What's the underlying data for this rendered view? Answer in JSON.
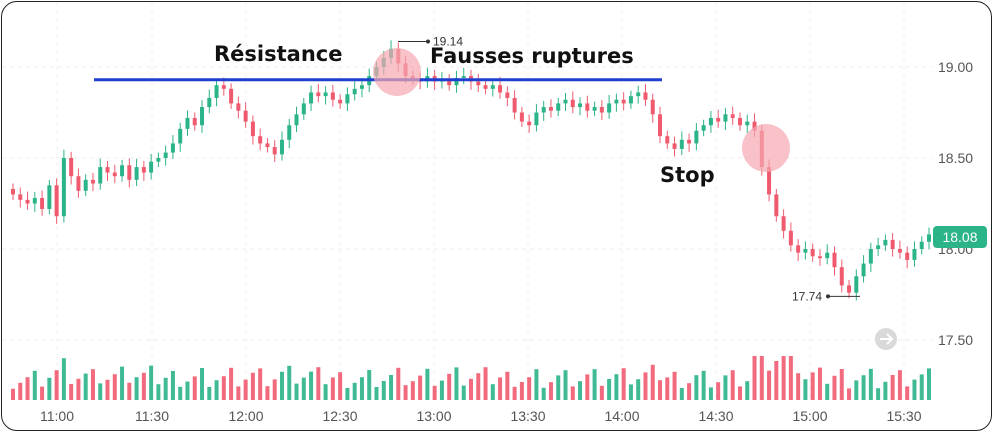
{
  "chart_data": {
    "type": "candlestick",
    "x_ticks": [
      "11:00",
      "11:30",
      "12:00",
      "12:30",
      "13:00",
      "13:30",
      "14:00",
      "14:30",
      "15:00",
      "15:30"
    ],
    "y_ticks": [
      "19.00",
      "18.50",
      "18.00",
      "17.50"
    ],
    "ylim": [
      17.3,
      19.3
    ],
    "grid": true,
    "last_price": "18.08",
    "high_label": "19.14",
    "low_label": "17.74",
    "annotations": {
      "resistance": "Résistance",
      "false_breakouts": "Fausses ruptures",
      "stop": "Stop"
    },
    "resistance_level": 18.93,
    "up_color": "#2bb389",
    "down_color": "#ef5a6f",
    "line_color": "#1f3fcf",
    "highlight_color": "#f5a8b1",
    "closes": [
      18.3,
      18.27,
      18.25,
      18.28,
      18.22,
      18.35,
      18.18,
      18.5,
      18.4,
      18.32,
      18.38,
      18.36,
      18.45,
      18.42,
      18.4,
      18.46,
      18.38,
      18.45,
      18.42,
      18.48,
      18.5,
      18.53,
      18.58,
      18.66,
      18.72,
      18.68,
      18.78,
      18.83,
      18.9,
      18.88,
      18.8,
      18.76,
      18.7,
      18.62,
      18.58,
      18.56,
      18.52,
      18.6,
      18.68,
      18.74,
      18.8,
      18.86,
      18.84,
      18.86,
      18.82,
      18.8,
      18.85,
      18.88,
      18.9,
      18.95,
      19.0,
      19.05,
      19.1,
      19.02,
      18.95,
      18.93,
      18.92,
      18.95,
      18.92,
      18.93,
      18.9,
      18.94,
      18.95,
      18.92,
      18.9,
      18.88,
      18.9,
      18.86,
      18.83,
      18.75,
      18.7,
      18.68,
      18.75,
      18.78,
      18.76,
      18.8,
      18.82,
      18.78,
      18.8,
      18.76,
      18.78,
      18.75,
      18.8,
      18.82,
      18.8,
      18.84,
      18.86,
      18.82,
      18.74,
      18.62,
      18.58,
      18.55,
      18.6,
      18.58,
      18.65,
      18.68,
      18.72,
      18.7,
      18.74,
      18.72,
      18.68,
      18.7,
      18.65,
      18.45,
      18.3,
      18.18,
      18.1,
      18.02,
      17.98,
      18.0,
      17.96,
      17.95,
      17.98,
      17.9,
      17.8,
      17.76,
      17.85,
      17.92,
      18.0,
      18.02,
      18.05,
      18.0,
      17.98,
      17.94,
      18.0,
      18.04,
      18.08
    ]
  }
}
